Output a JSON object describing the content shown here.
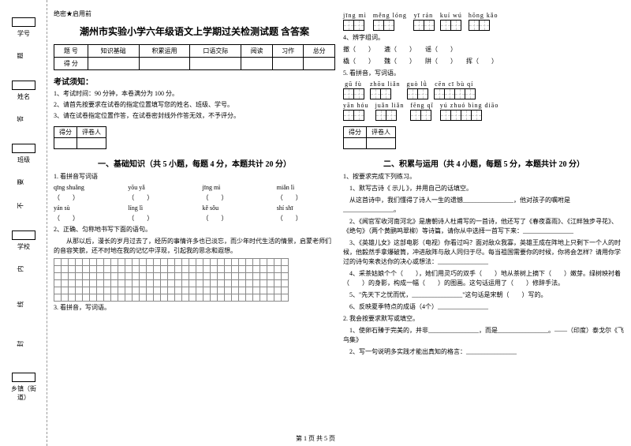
{
  "secret": "绝密★启用前",
  "title": "潮州市实验小学六年级语文上学期过关检测试题 含答案",
  "score_headers": [
    "题 号",
    "知识基础",
    "积累运用",
    "口语交际",
    "阅读",
    "习作",
    "总分"
  ],
  "score_row": "得 分",
  "notice_h": "考试须知：",
  "notices": [
    "1、考试时间：90 分钟，本卷满分为 100 分。",
    "2、请首先按要求在试卷的指定位置填写您的姓名、班级、学号。",
    "3、请在试卷指定位置作答，在试卷密封线外作答无效，不予评分。"
  ],
  "scorebox": {
    "l1": "得分",
    "l2": "评卷人"
  },
  "section1": "一、基础知识（共 5 小题，每题 4 分，本题共计 20 分）",
  "section2": "二、积累与运用（共 4 小题，每题 5 分，本题共计 20 分）",
  "q1": "1. 看拼音写词语",
  "pinyin1": [
    [
      "qīng shuǎng",
      "yōu yǎ",
      "jīng mì",
      "miǎn lì"
    ],
    [
      "（　　）",
      "（　　）",
      "（　　）",
      "（　　）"
    ],
    [
      "yán sù",
      "líng lì",
      "kě sǒu",
      "shí shī"
    ],
    [
      "（　　）",
      "（　　）",
      "（　　）",
      "（　　）"
    ]
  ],
  "q2": "2、正确、匀称地书写下面的语句。",
  "q2_body": "从那以后，漫长的岁月过去了，经历的事情许多也已淡忘，而少年时代生活的情景，启蒙老师们的音容笑貌，还不时地在我的记忆中浮现，引起我的思念和遐想。",
  "q3": "3. 看拼音，写词语。",
  "r_pinyin_top": [
    "jīng mì",
    "měng lóng",
    "yī rán",
    "kuí wú",
    "hōng kǎo"
  ],
  "q4": "4、辨字组词。",
  "q4_lines": [
    "撤（　　）　　漉（　　）　　谣（　　）",
    "橇（　　）　　魏（　　）　　阱（　　）　　挥（　　）"
  ],
  "q5": "5. 看拼音，写词语。",
  "r_pinyin_1": [
    "gū fù",
    "zhōu liǎn",
    "guò lǜ",
    "cēn cī bù qí"
  ],
  "r_pinyin_2": [
    "yān hóu",
    "juǎn liǎn",
    "fēng qǐ",
    "yú zhuó bìng diāo"
  ],
  "s2_q1": "1、按要求完成下列练习。",
  "s2_q1_1": "1、默写古诗《 示儿 》，并用自己的话填空。",
  "s2_q1_2": "从这首诗中，我们懂得了诗人一生的遗憾________________，他对孩子的嘱咐是________________。",
  "s2_q1_3": "2、《闻官军收河南河北》是唐朝诗人杜甫写的一首诗，他还写了《春夜喜雨》、《江畔独步寻花》、《绝句》（两个黄鹂鸣翠柳）等诗篇，请你从中选择一首写下来：________________",
  "s2_q1_4": "3、《英雄儿女》这部电影（电视）你看过吗？面对敌众我寡，英雄王成在阵地上只剩下一个人的时候，他毅然手拿爆破筒，冲进敌阵与敌人同归于尽。每当祖国需要你的时候，你将会怎样？请用你学过的诗句来表达你的决心或想法：________________",
  "s2_q1_5": "4、采茶姑娘个个（　　），她们用灵巧的双手（　　）地从茶树上摘下（　　）嫩芽。绿树映衬着（　　）的身影，构成一幅（　　）的图画。这句话运用了（　　）修辞手法。",
  "s2_q1_6": "5、\"先天下之忧而忧，________________\"这句话是宋朝（　　）写的。",
  "s2_q1_7": "6、反映夏季特点的成语（4个）________________",
  "s2_q2": "2. 我会按要求默写或填空。",
  "s2_q2_1": "1、使卵石臻于完美的，并非________________，而是________________。——（印度）泰戈尔《飞鸟集》",
  "s2_q2_2": "2、写一句说明多实践才能出真知的格言：________________",
  "margin_labels": [
    "学号",
    "姓名",
    "班级",
    "学校",
    "乡镇（街道）"
  ],
  "margin_chars": [
    "题",
    "答",
    "要",
    "不",
    "内",
    "线",
    "封"
  ],
  "footer": "第 1 页 共 5 页"
}
